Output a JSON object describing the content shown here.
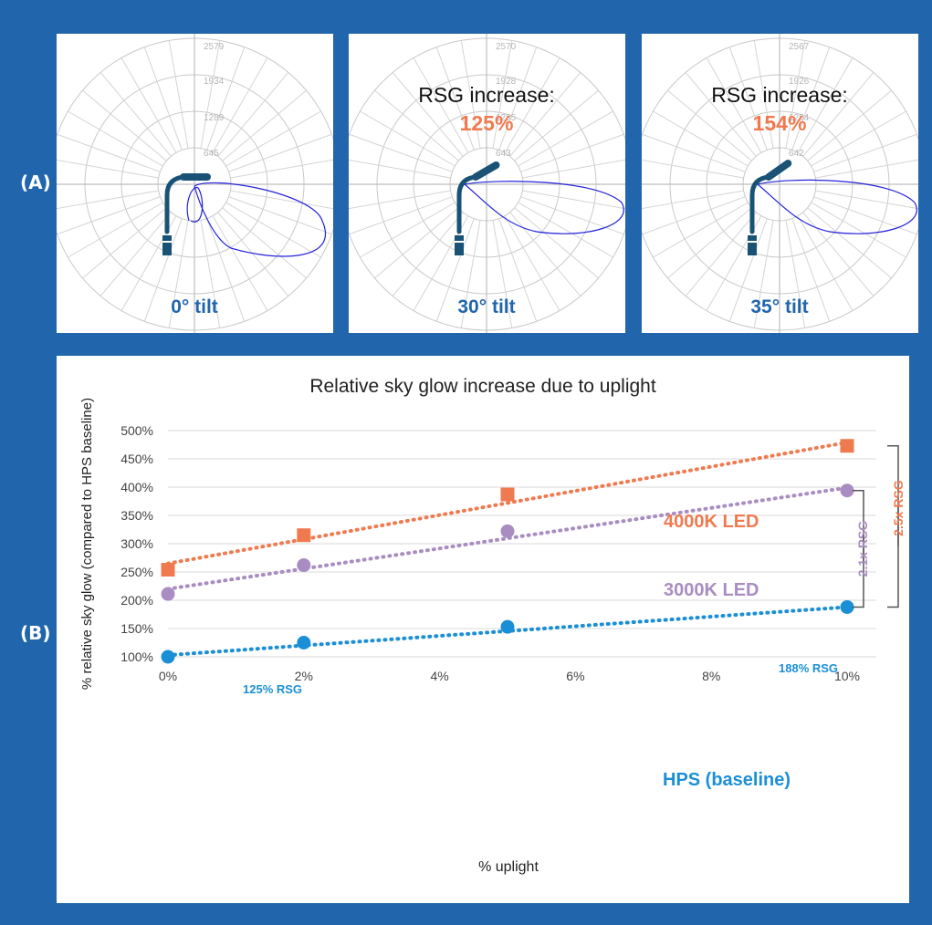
{
  "panel_labels": {
    "a": "(A)",
    "b": "(B)"
  },
  "colors": {
    "background": "#2166ac",
    "fixture": "#1a5276",
    "polar_curve": "#2323d9",
    "tilt_text": "#2166ac",
    "rsg_percent": "#f07a50",
    "led_4000k": "#f07a50",
    "led_3000k": "#a98dc2",
    "hps": "#1b8fd6"
  },
  "polar_panels": [
    {
      "tilt_label": "0° tilt",
      "ring_labels": [
        "2579",
        "1934",
        "1289",
        "645"
      ],
      "tilt_deg": 0
    },
    {
      "tilt_label": "30° tilt",
      "ring_labels": [
        "2570",
        "1928",
        "1285",
        "643"
      ],
      "rsg_label": "RSG increase:",
      "rsg_value": "125%",
      "tilt_deg": 30
    },
    {
      "tilt_label": "35° tilt",
      "ring_labels": [
        "2567",
        "1926",
        "1284",
        "642"
      ],
      "rsg_label": "RSG increase:",
      "rsg_value": "154%",
      "tilt_deg": 35
    }
  ],
  "chart_data": {
    "type": "scatter",
    "title": "Relative sky glow increase due to uplight",
    "xlabel": "% uplight",
    "ylabel": "% relative sky glow (compared to HPS baseline)",
    "x_ticks": [
      "0%",
      "2%",
      "4%",
      "6%",
      "8%",
      "10%"
    ],
    "y_ticks": [
      "100%",
      "150%",
      "200%",
      "250%",
      "300%",
      "350%",
      "400%",
      "450%",
      "500%"
    ],
    "xlim": [
      0,
      10
    ],
    "ylim": [
      100,
      500
    ],
    "x": [
      0,
      2,
      5,
      10
    ],
    "series": [
      {
        "name": "4000K LED",
        "values": [
          254,
          315,
          387,
          473
        ],
        "trend": [
          265,
          479
        ]
      },
      {
        "name": "3000K LED",
        "values": [
          211,
          262,
          322,
          394
        ],
        "trend": [
          220,
          399
        ]
      },
      {
        "name": "HPS (baseline)",
        "values": [
          100,
          125,
          153,
          188
        ],
        "trend": [
          103,
          188
        ]
      }
    ],
    "annotations": {
      "hps_2pct": "125% RSG",
      "hps_10pct": "188% RSG",
      "bracket_3000k": "2.1x RSG",
      "bracket_4000k": "2.5x RSG"
    }
  }
}
